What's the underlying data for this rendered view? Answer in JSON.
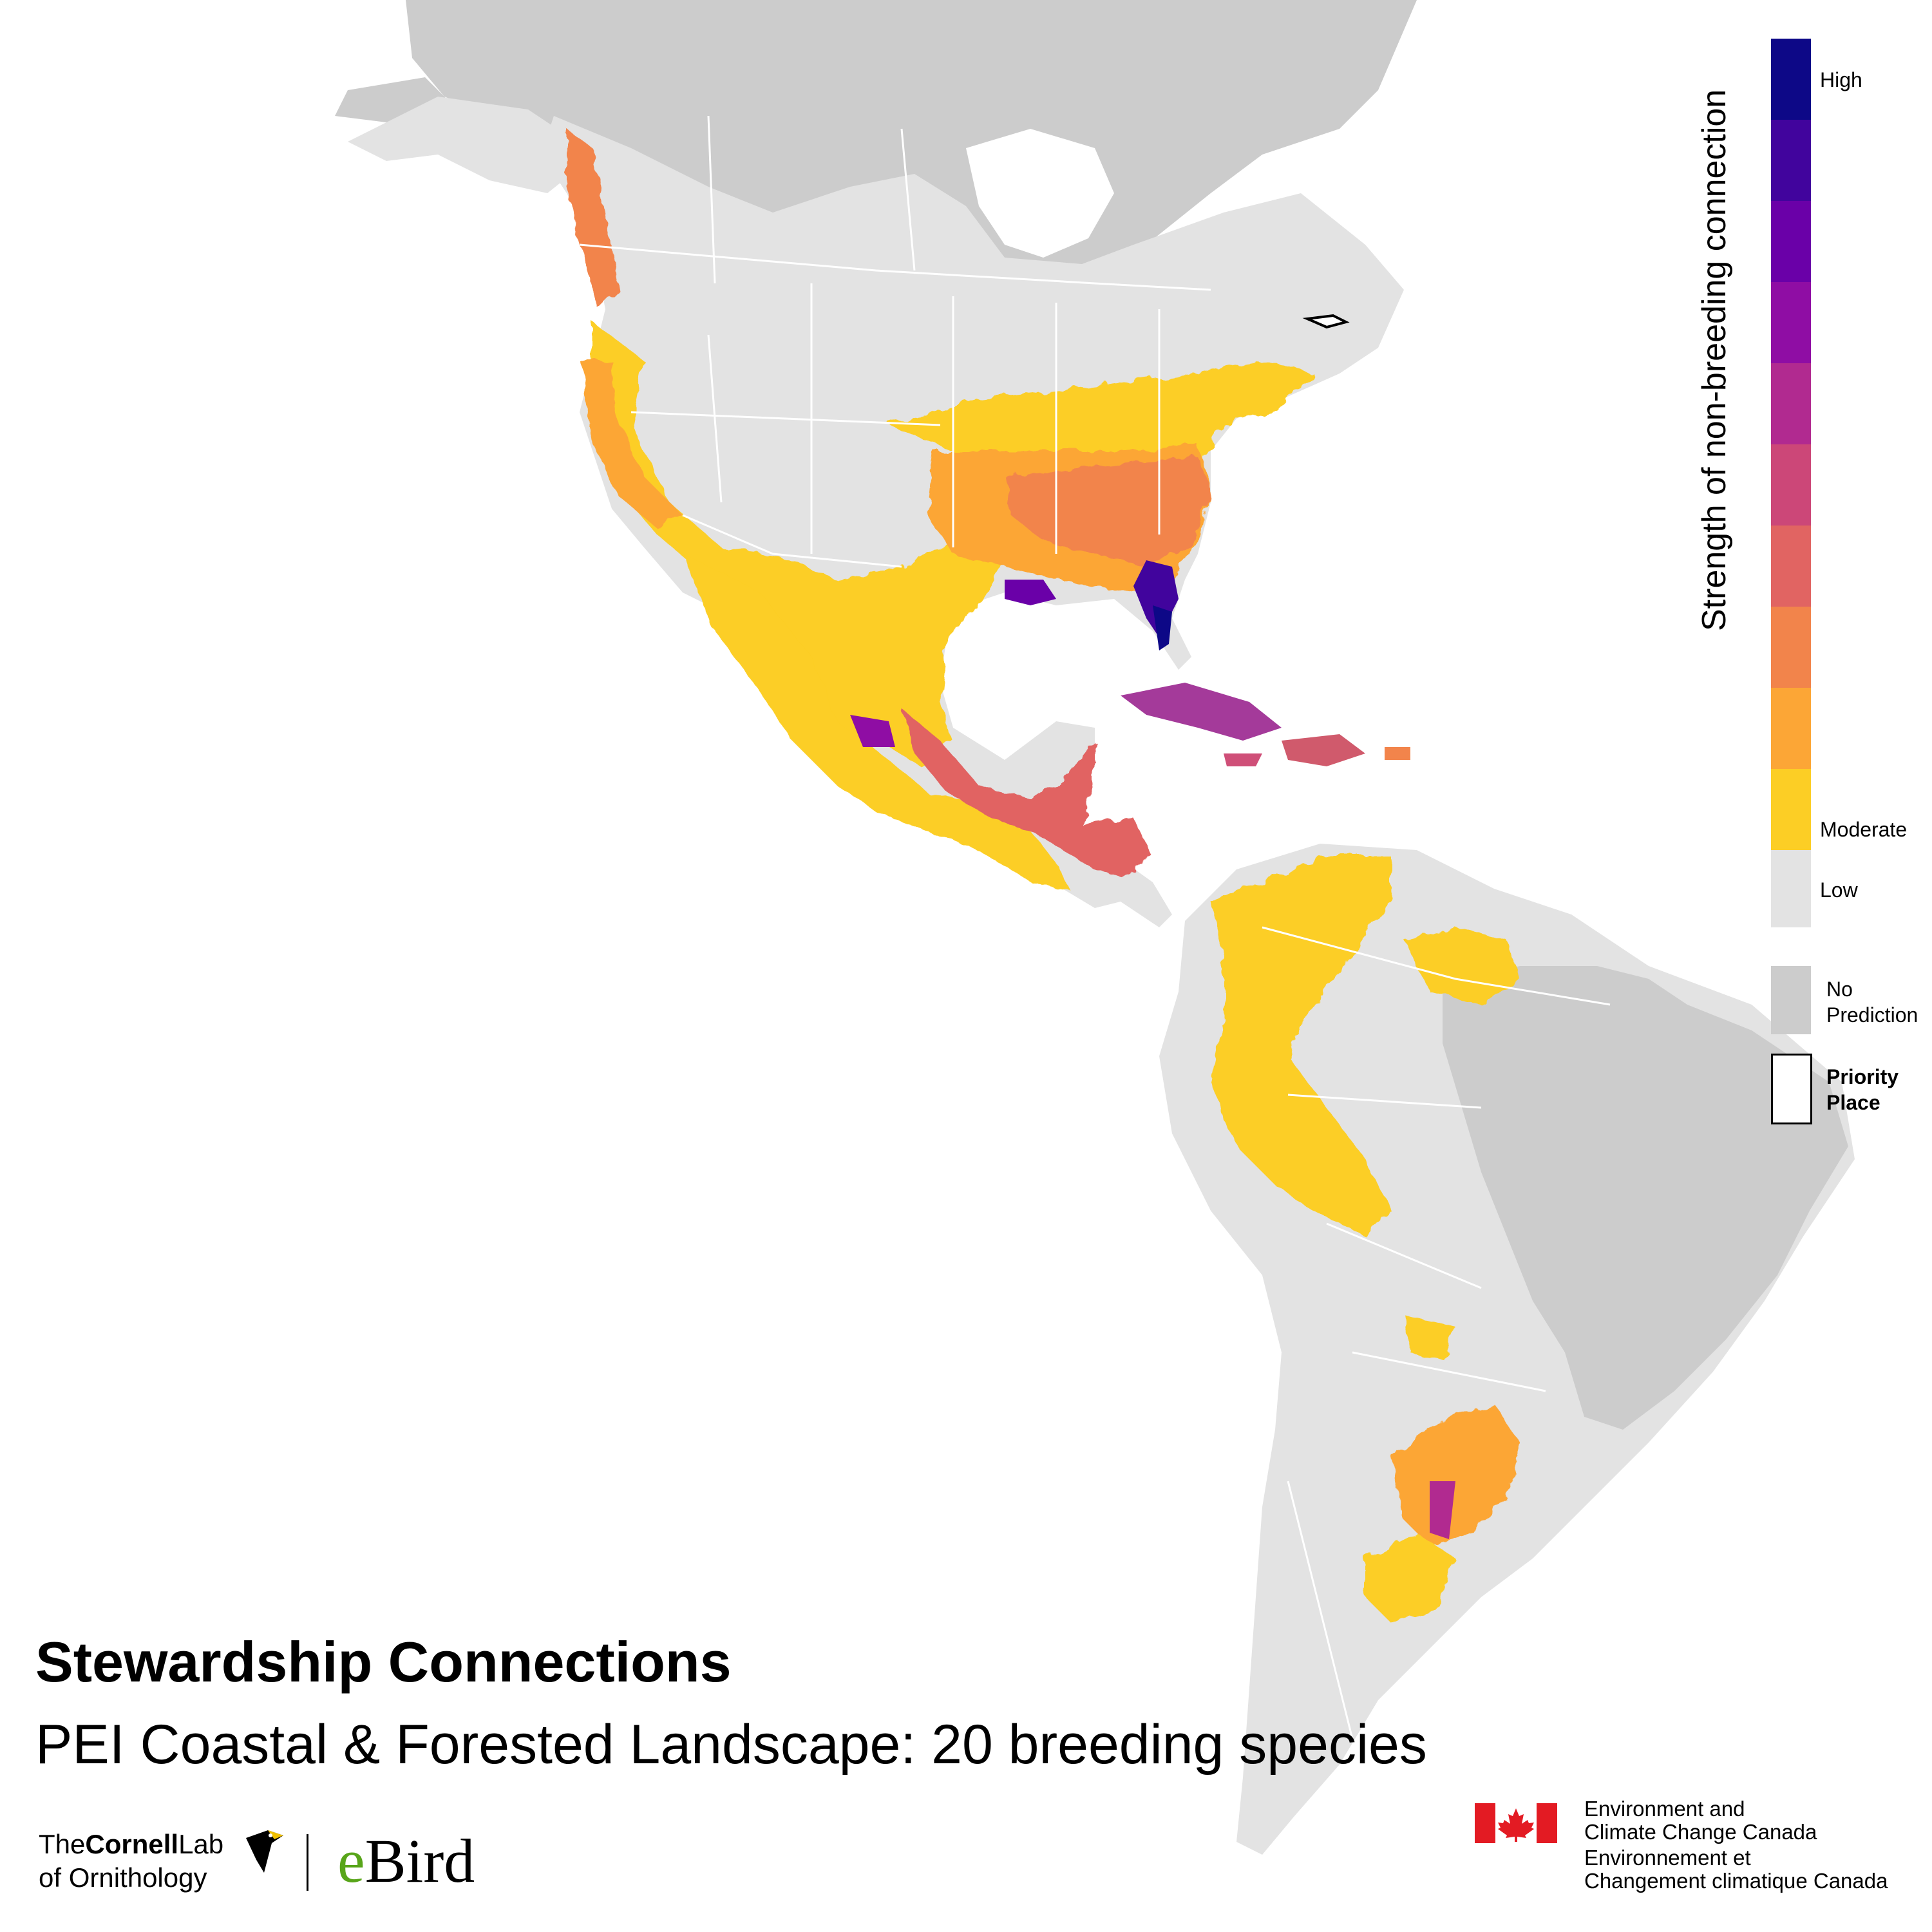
{
  "title": "Stewardship Connections",
  "subtitle": "PEI Coastal & Forested Landscape: 20 breeding species",
  "legend": {
    "title": "Strength of non-breeding connection",
    "high_label": "High",
    "moderate_label": "Moderate",
    "low_label": "Low",
    "no_prediction_label_line1": "No",
    "no_prediction_label_line2": "Prediction",
    "priority_place_label_line1": "Priority",
    "priority_place_label_line2": "Place",
    "colors": [
      "#0d0887",
      "#41049d",
      "#6a00a8",
      "#8f0da4",
      "#b12a90",
      "#cc4778",
      "#e16462",
      "#f2844b",
      "#fca636",
      "#fcce25"
    ],
    "low_color": "#e3e3e3",
    "no_prediction_color": "#cccccc"
  },
  "colors": {
    "ocean": "#ffffff",
    "low_land": "#e3e3e3",
    "no_prediction_land": "#cccccc",
    "border": "#ffffff"
  },
  "logos": {
    "cornell_line1_a": "The",
    "cornell_line1_b": "Cornell",
    "cornell_line1_c": "Lab",
    "cornell_line2": "of Ornithology",
    "ebird": "eBird",
    "eccc_en_line1": "Environment and",
    "eccc_en_line2": "Climate Change Canada",
    "eccc_fr_line1": "Environnement et",
    "eccc_fr_line2": "Changement climatique Canada"
  }
}
